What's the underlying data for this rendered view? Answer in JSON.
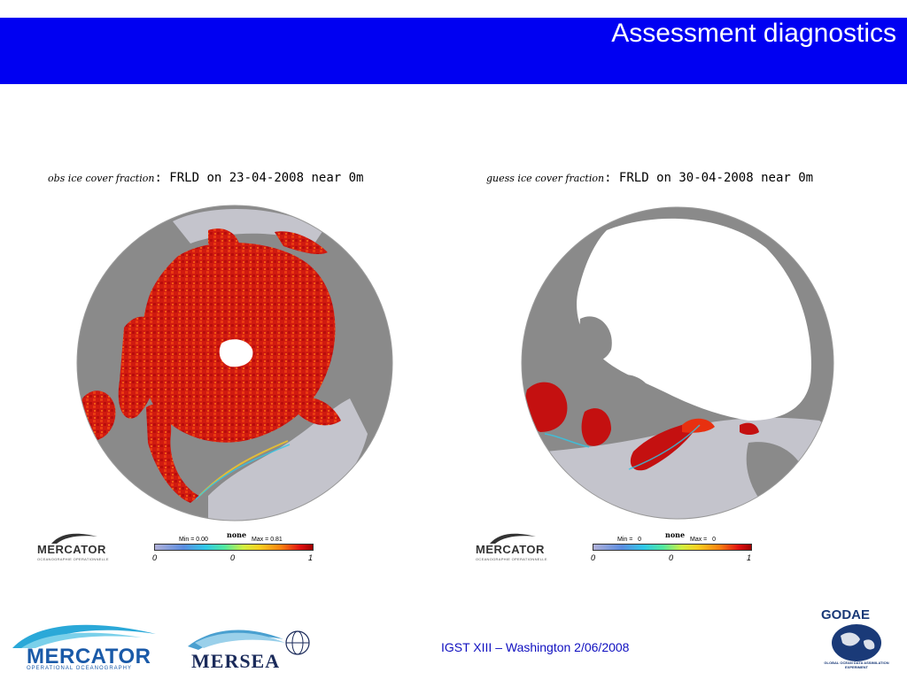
{
  "header": {
    "title": "Assessment diagnostics",
    "bar_color": "#0000f2"
  },
  "panels": [
    {
      "title_italic": "obs ice cover fraction",
      "title_main": ": FRLD on 23-04-2008 near 0m",
      "colorbar": {
        "unit": "none",
        "min_label": "Min = 0.00",
        "max_label": "Max = 0.81",
        "tick_start": "0",
        "tick_mid": "0",
        "tick_end": "1"
      }
    },
    {
      "title_italic": "guess ice cover fraction",
      "title_main": ": FRLD on 30-04-2008 near 0m",
      "colorbar": {
        "unit": "none",
        "min_label": "Min =   0",
        "max_label": "Max =   0",
        "tick_start": "0",
        "tick_mid": "0",
        "tick_end": "1"
      }
    }
  ],
  "logos": {
    "mercator_small": {
      "name": "MERCATOR",
      "subtitle": "OCEANOGRAPHIE OPERATIONNELLE"
    },
    "mercator_footer": {
      "name": "MERCATOR",
      "subtitle": "OPERATIONAL OCEANOGRAPHY"
    },
    "mersea": {
      "name": "MERSEA"
    },
    "godae": {
      "name": "GODAE",
      "subtitle": "GLOBAL OCEAN DATA ASSIMILATION EXPERIMENT"
    }
  },
  "footer": {
    "text": "IGST XIII – Washington  2/06/2008",
    "text_color": "#1010c0"
  },
  "map_colors": {
    "land": "#8a8a8a",
    "ocean_no_ice": "#c4c4cc",
    "ice_high": "#c41010",
    "ice_mid": "#e83010",
    "no_data": "#ffffff"
  }
}
